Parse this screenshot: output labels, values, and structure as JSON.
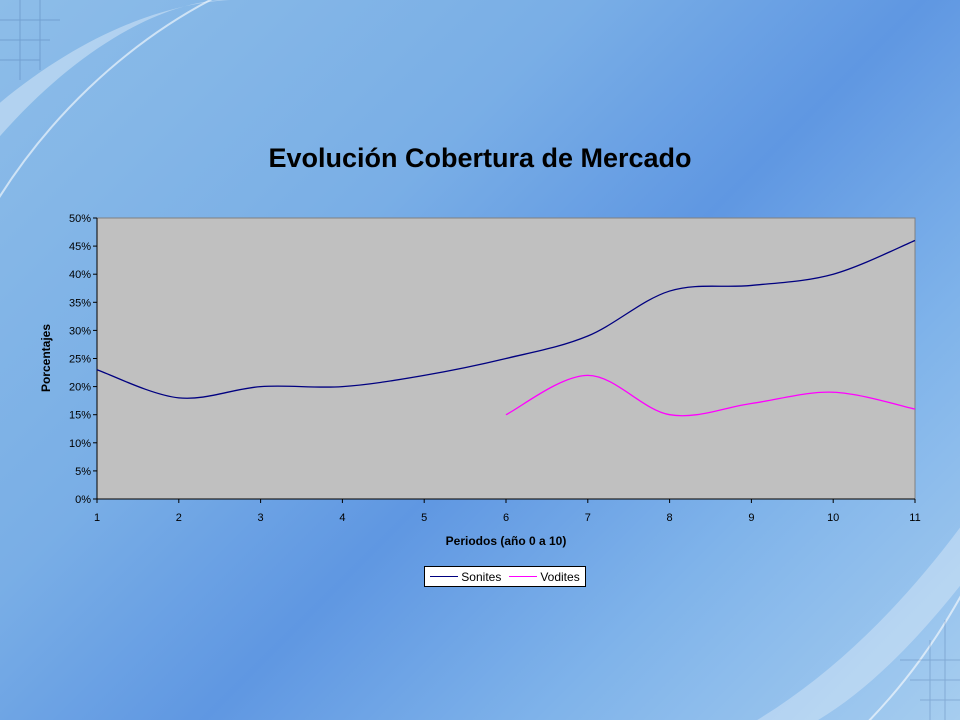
{
  "chart_data": {
    "type": "line",
    "title": "Evolución Cobertura de Mercado",
    "xlabel": "Periodos (año 0 a 10)",
    "ylabel": "Porcentajes",
    "x": [
      1,
      2,
      3,
      4,
      5,
      6,
      7,
      8,
      9,
      10,
      11
    ],
    "xlim": [
      1,
      11
    ],
    "ylim": [
      0,
      50
    ],
    "y_ticks": [
      "0%",
      "5%",
      "10%",
      "15%",
      "20%",
      "25%",
      "30%",
      "35%",
      "40%",
      "45%",
      "50%"
    ],
    "x_ticks": [
      "1",
      "2",
      "3",
      "4",
      "5",
      "6",
      "7",
      "8",
      "9",
      "10",
      "11"
    ],
    "grid": false,
    "legend_position": "bottom",
    "series": [
      {
        "name": "Sonites",
        "color": "#000080",
        "x": [
          1,
          2,
          3,
          4,
          5,
          6,
          7,
          8,
          9,
          10,
          11
        ],
        "values": [
          23,
          18,
          20,
          20,
          22,
          25,
          29,
          37,
          38,
          40,
          46
        ]
      },
      {
        "name": "Vodites",
        "color": "#ff00ff",
        "x": [
          6,
          7,
          8,
          9,
          10,
          11
        ],
        "values": [
          15,
          22,
          15,
          17,
          19,
          16
        ]
      }
    ]
  },
  "colors": {
    "plot_background": "#c0c0c0"
  }
}
